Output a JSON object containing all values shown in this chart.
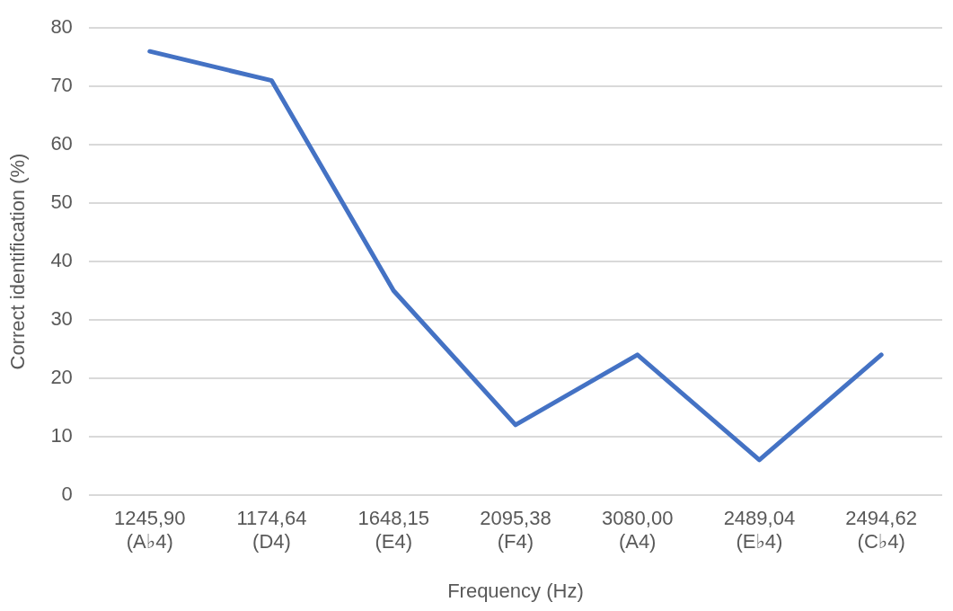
{
  "chart_data": {
    "type": "line",
    "xlabel": "Frequency (Hz)",
    "ylabel": "Correct identification (%)",
    "categories": [
      "1245,90\n(A♭4)",
      "1174,64\n(D4)",
      "1648,15\n(E4)",
      "2095,38\n(F4)",
      "3080,00\n(A4)",
      "2489,04\n(E♭4)",
      "2494,62\n(C♭4)"
    ],
    "series": [
      {
        "color": "#4472c4",
        "values": [
          76,
          71,
          35,
          12,
          24,
          6,
          24
        ]
      }
    ],
    "ylim": [
      0,
      80
    ],
    "yticks": [
      0,
      10,
      20,
      30,
      40,
      50,
      60,
      70,
      80
    ],
    "grid": "y",
    "legend": false,
    "marker": "none",
    "line_style": "solid"
  }
}
